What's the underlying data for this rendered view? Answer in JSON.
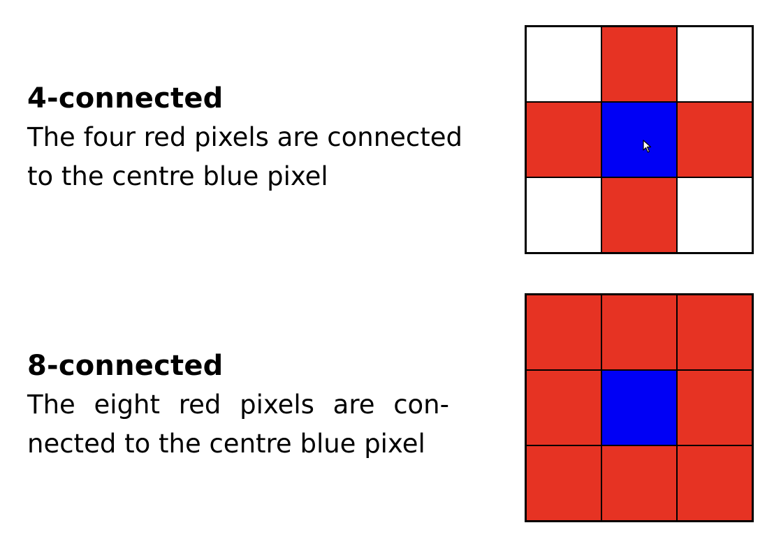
{
  "four_connected": {
    "title": "4-connected",
    "description_lines": [
      "The four red pixels are connected",
      "to the centre blue pixel"
    ],
    "grid": [
      [
        "white",
        "red",
        "white"
      ],
      [
        "red",
        "blue",
        "red"
      ],
      [
        "white",
        "red",
        "white"
      ]
    ]
  },
  "eight_connected": {
    "title": "8-connected",
    "description_line1_words": [
      "The",
      "eight",
      "red",
      "pixels",
      "are",
      "con-"
    ],
    "description_line2": "nected to the centre blue pixel",
    "grid": [
      [
        "red",
        "red",
        "red"
      ],
      [
        "red",
        "blue",
        "red"
      ],
      [
        "red",
        "red",
        "red"
      ]
    ]
  },
  "colors": {
    "red": "#e63323",
    "blue": "#0000f5",
    "white": "#ffffff",
    "border": "#000000"
  },
  "icons": {
    "cursor": "mouse-pointer-icon"
  }
}
